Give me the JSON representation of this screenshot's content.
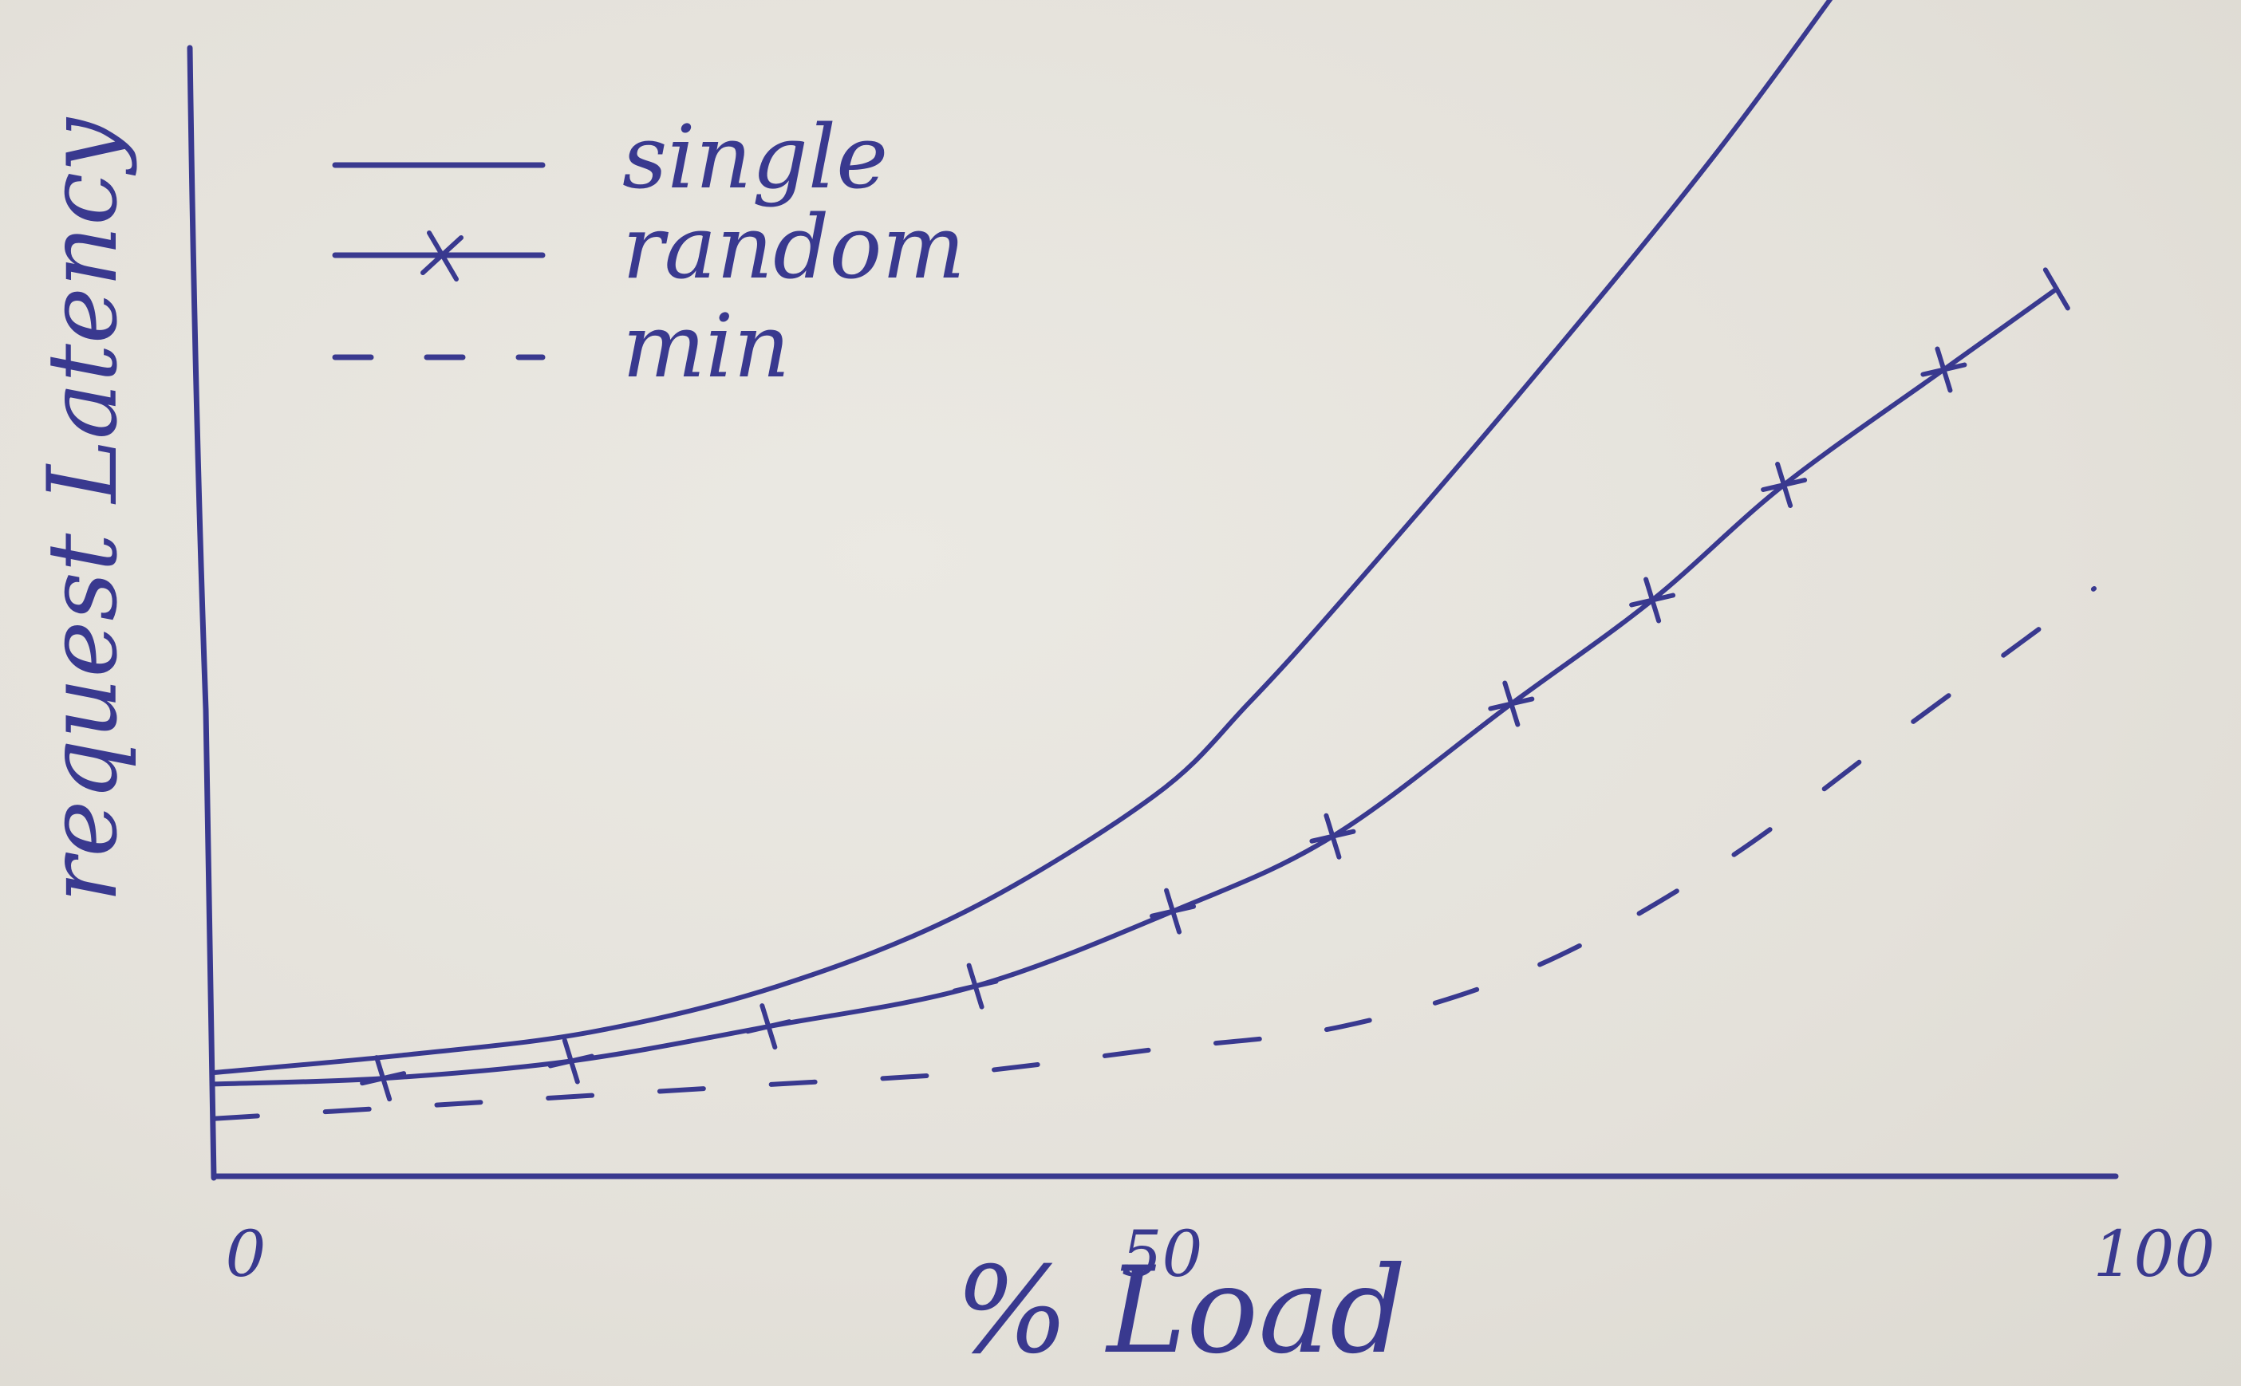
{
  "chart_data": {
    "type": "line",
    "title": "",
    "xlabel": "% Load",
    "ylabel": "request Latency",
    "xlim": [
      0,
      100
    ],
    "ylim": [
      0,
      100
    ],
    "x_ticks": [
      {
        "value": 0,
        "label": "0"
      },
      {
        "value": 50,
        "label": "50"
      },
      {
        "value": 100,
        "label": "100"
      }
    ],
    "grid": false,
    "legend_position": "top-left",
    "series": [
      {
        "name": "single",
        "style": "solid",
        "marker": "none",
        "x": [
          0,
          10,
          20,
          30,
          40,
          50,
          55,
          60,
          70,
          80,
          89
        ],
        "y": [
          9,
          10.5,
          12.5,
          16.5,
          23,
          33,
          41,
          50,
          69,
          89,
          109
        ]
      },
      {
        "name": "random",
        "style": "solid",
        "marker": "x",
        "x": [
          0,
          9,
          19,
          29.5,
          40.5,
          51,
          59.5,
          69,
          76.5,
          83.5,
          92,
          98
        ],
        "y": [
          8,
          8.5,
          10,
          13,
          16.5,
          23,
          29.5,
          41,
          50,
          60,
          70,
          77
        ]
      },
      {
        "name": "min",
        "style": "dashed",
        "marker": "none",
        "x": [
          0,
          10,
          20,
          30,
          40,
          50,
          60,
          70,
          80,
          90,
          100
        ],
        "y": [
          5,
          6,
          7,
          8,
          9,
          11,
          13,
          18,
          27,
          39,
          51
        ]
      }
    ],
    "colors": {
      "ink": "#39398f",
      "paper": "#e8e6e0"
    }
  }
}
